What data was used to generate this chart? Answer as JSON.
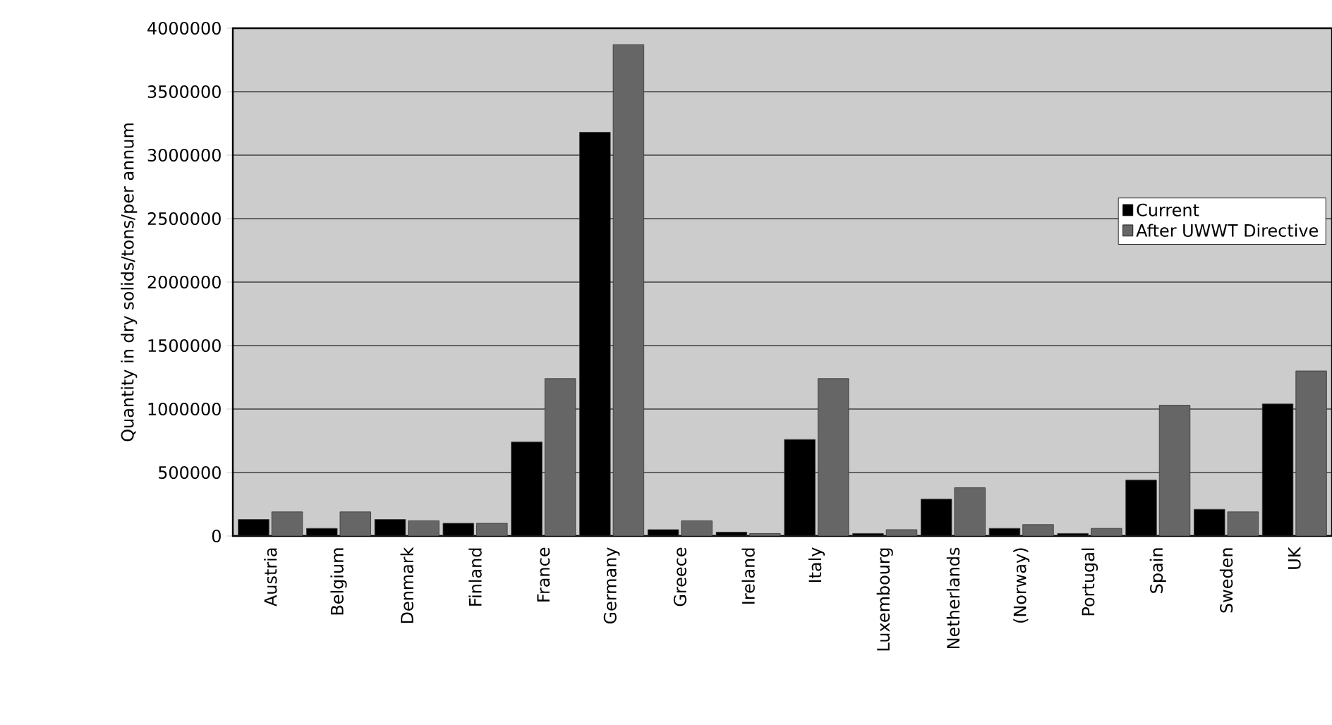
{
  "chart_data": {
    "type": "bar",
    "ylabel": "Quantity in dry solids/tons/per annum",
    "categories": [
      "Austria",
      "Belgium",
      "Denmark",
      "Finland",
      "France",
      "Germany",
      "Greece",
      "Ireland",
      "Italy",
      "Luxembourg",
      "Netherlands",
      "(Norway)",
      "Portugal",
      "Spain",
      "Sweden",
      "UK"
    ],
    "series": [
      {
        "name": "Current",
        "color": "#000000",
        "values": [
          130000,
          60000,
          130000,
          100000,
          740000,
          3180000,
          50000,
          30000,
          760000,
          20000,
          290000,
          60000,
          20000,
          440000,
          210000,
          1040000
        ]
      },
      {
        "name": "After UWWT Directive",
        "color": "#666666",
        "values": [
          190000,
          190000,
          120000,
          100000,
          1240000,
          3870000,
          120000,
          20000,
          1240000,
          50000,
          380000,
          90000,
          60000,
          1030000,
          190000,
          1300000
        ]
      }
    ],
    "ylim": [
      0,
      4000000
    ],
    "yticks": [
      0,
      500000,
      1000000,
      1500000,
      2000000,
      2500000,
      3000000,
      3500000,
      4000000
    ],
    "grid": "y",
    "legend": "right"
  }
}
